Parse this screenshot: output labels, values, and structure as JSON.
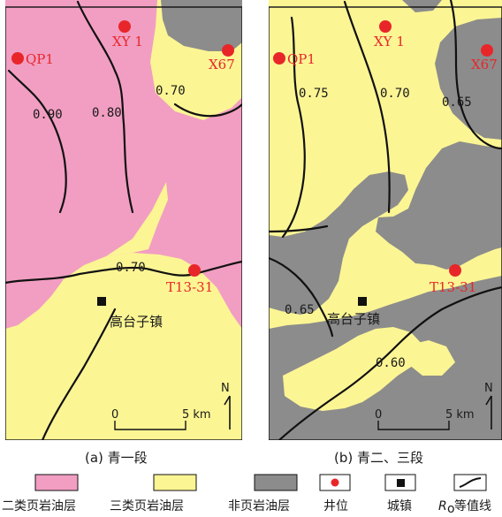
{
  "panels": {
    "a": {
      "caption": "(a) 青一段",
      "wells": [
        "QP1",
        "XY 1",
        "X67",
        "T13-31"
      ],
      "contours": [
        "0.90",
        "0.80",
        "0.70",
        "0.70"
      ],
      "town": "高台子镇",
      "north": "N",
      "scale": {
        "zero": "0",
        "five": "5 km"
      }
    },
    "b": {
      "caption": "(b) 青二、三段",
      "wells": [
        "QP1",
        "XY 1",
        "X67",
        "T13-31"
      ],
      "contours": [
        "0.75",
        "0.70",
        "0.65",
        "0.65",
        "0.60"
      ],
      "town": "高台子镇",
      "north": "N",
      "scale": {
        "zero": "0",
        "five": "5 km"
      }
    }
  },
  "legend": [
    {
      "label": "二类页岩油层",
      "color": "#f19ec2"
    },
    {
      "label": "三类页岩油层",
      "color": "#fcf594"
    },
    {
      "label": "非页岩油层",
      "color": "#8c8c8c"
    },
    {
      "label": "井位",
      "icon": "red-dot-icon"
    },
    {
      "label": "城镇",
      "icon": "black-square-icon"
    },
    {
      "label": "R",
      "sub": "o",
      "tail": "等值线",
      "icon": "contour-line-icon"
    }
  ],
  "colors": {
    "class2": "#f19ec2",
    "class3": "#fcf594",
    "non": "#8c8c8c",
    "well": "#e8262a"
  }
}
